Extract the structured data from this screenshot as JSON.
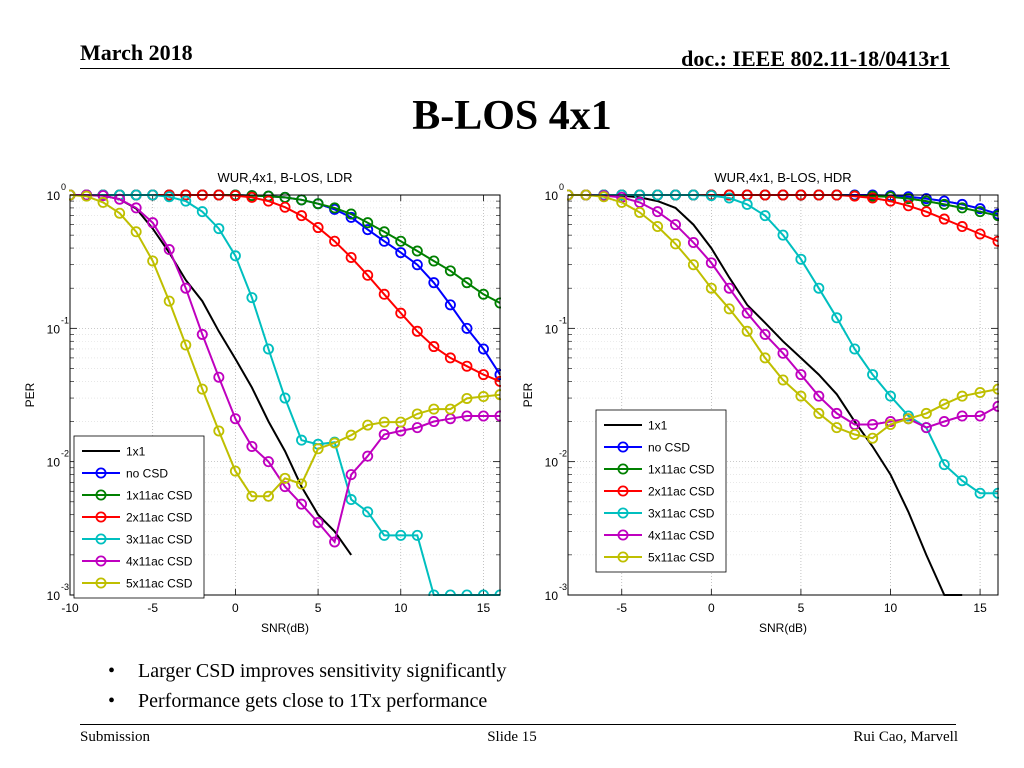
{
  "header": {
    "date": "March 2018",
    "doc": "doc.: IEEE 802.11-18/0413r1"
  },
  "slide_title": "B-LOS 4x1",
  "colors": {
    "1x1": "#000000",
    "no CSD": "#0000ff",
    "1x11ac CSD": "#008000",
    "2x11ac CSD": "#ff0000",
    "3x11ac CSD": "#00bfbf",
    "4x11ac CSD": "#bf00bf",
    "5x11ac CSD": "#bfbf00"
  },
  "chart_data": [
    {
      "type": "line",
      "title": "WUR,4x1, B-LOS, LDR",
      "xlabel": "SNR(dB)",
      "ylabel": "PER",
      "yscale": "log",
      "xlim": [
        -10,
        16
      ],
      "ylim": [
        0.001,
        1
      ],
      "xticks": [
        "-10",
        "-5",
        "0",
        "5",
        "10",
        "15"
      ],
      "xtick_values": [
        -10,
        -5,
        0,
        5,
        10,
        15
      ],
      "yticks": [
        {
          "base": "10",
          "exp": "0",
          "value": 1
        },
        {
          "base": "10",
          "exp": "-1",
          "value": 0.1
        },
        {
          "base": "10",
          "exp": "-2",
          "value": 0.01
        },
        {
          "base": "10",
          "exp": "-3",
          "value": 0.001
        }
      ],
      "legend_position": "bottom-left",
      "series": [
        {
          "name": "1x1",
          "markers": false,
          "x": [
            -10,
            -9,
            -8,
            -7,
            -6,
            -5,
            -4,
            -3,
            -2,
            -1,
            0,
            1,
            2,
            3,
            4,
            5,
            6,
            7
          ],
          "y": [
            1,
            1,
            0.99,
            0.93,
            0.79,
            0.56,
            0.37,
            0.23,
            0.16,
            0.095,
            0.059,
            0.036,
            0.02,
            0.012,
            0.0065,
            0.004,
            0.003,
            0.002
          ]
        },
        {
          "name": "no CSD",
          "markers": true,
          "x": [
            -10,
            -9,
            -8,
            -7,
            -6,
            -5,
            -4,
            -3,
            -2,
            -1,
            0,
            1,
            2,
            3,
            4,
            5,
            6,
            7,
            8,
            9,
            10,
            11,
            12,
            13,
            14,
            15,
            16
          ],
          "y": [
            1,
            1,
            1,
            1,
            1,
            1,
            1,
            1,
            1,
            1,
            1,
            0.99,
            0.98,
            0.96,
            0.92,
            0.86,
            0.78,
            0.68,
            0.55,
            0.45,
            0.37,
            0.3,
            0.22,
            0.15,
            0.1,
            0.07,
            0.045
          ]
        },
        {
          "name": "1x11ac CSD",
          "markers": true,
          "x": [
            -10,
            -9,
            -8,
            -7,
            -6,
            -5,
            -4,
            -3,
            -2,
            -1,
            0,
            1,
            2,
            3,
            4,
            5,
            6,
            7,
            8,
            9,
            10,
            11,
            12,
            13,
            14,
            15,
            16
          ],
          "y": [
            1,
            1,
            1,
            1,
            1,
            1,
            1,
            1,
            1,
            1,
            1,
            0.99,
            0.98,
            0.96,
            0.92,
            0.86,
            0.8,
            0.72,
            0.62,
            0.53,
            0.45,
            0.38,
            0.32,
            0.27,
            0.22,
            0.18,
            0.155
          ]
        },
        {
          "name": "2x11ac CSD",
          "markers": true,
          "x": [
            -10,
            -9,
            -8,
            -7,
            -6,
            -5,
            -4,
            -3,
            -2,
            -1,
            0,
            1,
            2,
            3,
            4,
            5,
            6,
            7,
            8,
            9,
            10,
            11,
            12,
            13,
            14,
            15,
            16
          ],
          "y": [
            1,
            1,
            1,
            1,
            1,
            1,
            1,
            1,
            1,
            1,
            0.99,
            0.96,
            0.9,
            0.81,
            0.7,
            0.57,
            0.45,
            0.34,
            0.25,
            0.18,
            0.13,
            0.095,
            0.073,
            0.06,
            0.052,
            0.045,
            0.04
          ]
        },
        {
          "name": "3x11ac CSD",
          "markers": true,
          "x": [
            -10,
            -9,
            -8,
            -7,
            -6,
            -5,
            -4,
            -3,
            -2,
            -1,
            0,
            1,
            2,
            3,
            4,
            5,
            6,
            7,
            8,
            9,
            10,
            11,
            12,
            13,
            14,
            15,
            16
          ],
          "y": [
            1,
            1,
            1,
            1,
            1,
            1,
            0.97,
            0.9,
            0.75,
            0.56,
            0.35,
            0.17,
            0.07,
            0.03,
            0.0145,
            0.0135,
            0.014,
            0.0052,
            0.0042,
            0.0028,
            0.0028,
            0.0028,
            0.001,
            0.001,
            0.001,
            0.001,
            0.001
          ]
        },
        {
          "name": "4x11ac CSD",
          "markers": true,
          "x": [
            -10,
            -9,
            -8,
            -7,
            -6,
            -5,
            -4,
            -3,
            -2,
            -1,
            0,
            1,
            2,
            3,
            4,
            5,
            6,
            7,
            8,
            9,
            10,
            11,
            12,
            13,
            14,
            15,
            16
          ],
          "y": [
            1,
            1,
            0.99,
            0.93,
            0.8,
            0.62,
            0.39,
            0.2,
            0.09,
            0.043,
            0.021,
            0.013,
            0.01,
            0.0065,
            0.0048,
            0.0035,
            0.0025,
            0.008,
            0.011,
            0.016,
            0.017,
            0.018,
            0.02,
            0.021,
            0.022,
            0.022,
            0.022
          ]
        },
        {
          "name": "5x11ac CSD",
          "markers": true,
          "x": [
            -10,
            -9,
            -8,
            -7,
            -6,
            -5,
            -4,
            -3,
            -2,
            -1,
            0,
            1,
            2,
            3,
            4,
            5,
            6,
            7,
            8,
            9,
            10,
            11,
            12,
            13,
            14,
            15,
            16
          ],
          "y": [
            1,
            0.98,
            0.88,
            0.73,
            0.53,
            0.32,
            0.16,
            0.075,
            0.035,
            0.017,
            0.0085,
            0.0055,
            0.0055,
            0.0075,
            0.0068,
            0.0125,
            0.0138,
            0.0158,
            0.0188,
            0.0198,
            0.0198,
            0.0228,
            0.0248,
            0.0248,
            0.0298,
            0.0308,
            0.0318
          ]
        }
      ]
    },
    {
      "type": "line",
      "title": "WUR,4x1, B-LOS, HDR",
      "xlabel": "SNR(dB)",
      "ylabel": "PER",
      "yscale": "log",
      "xlim": [
        -8,
        16
      ],
      "ylim": [
        0.001,
        1
      ],
      "xticks": [
        "-5",
        "0",
        "5",
        "10",
        "15"
      ],
      "xtick_values": [
        -5,
        0,
        5,
        10,
        15
      ],
      "yticks": [
        {
          "base": "10",
          "exp": "0",
          "value": 1
        },
        {
          "base": "10",
          "exp": "-1",
          "value": 0.1
        },
        {
          "base": "10",
          "exp": "-2",
          "value": 0.01
        },
        {
          "base": "10",
          "exp": "-3",
          "value": 0.001
        }
      ],
      "legend_position": "bottom-right",
      "series": [
        {
          "name": "1x1",
          "markers": false,
          "x": [
            -8,
            -7,
            -6,
            -5,
            -4,
            -3,
            -2,
            -1,
            0,
            1,
            2,
            3,
            4,
            5,
            6,
            7,
            8,
            9,
            10,
            11,
            12,
            13,
            14
          ],
          "y": [
            1,
            1,
            1,
            0.99,
            0.96,
            0.9,
            0.8,
            0.6,
            0.4,
            0.24,
            0.15,
            0.11,
            0.08,
            0.06,
            0.045,
            0.032,
            0.02,
            0.013,
            0.008,
            0.0042,
            0.002,
            0.001,
            0.001
          ]
        },
        {
          "name": "no CSD",
          "markers": true,
          "x": [
            -8,
            -7,
            -6,
            -5,
            -4,
            -3,
            -2,
            -1,
            0,
            1,
            2,
            3,
            4,
            5,
            6,
            7,
            8,
            9,
            10,
            11,
            12,
            13,
            14,
            15,
            16
          ],
          "y": [
            1,
            1,
            1,
            1,
            1,
            1,
            1,
            1,
            1,
            1,
            1,
            1,
            1,
            1,
            1,
            1,
            1,
            1,
            0.99,
            0.97,
            0.94,
            0.9,
            0.85,
            0.79,
            0.72
          ]
        },
        {
          "name": "1x11ac CSD",
          "markers": true,
          "x": [
            -8,
            -7,
            -6,
            -5,
            -4,
            -3,
            -2,
            -1,
            0,
            1,
            2,
            3,
            4,
            5,
            6,
            7,
            8,
            9,
            10,
            11,
            12,
            13,
            14,
            15,
            16
          ],
          "y": [
            1,
            1,
            1,
            1,
            1,
            1,
            1,
            1,
            1,
            1,
            1,
            1,
            1,
            1,
            1,
            1,
            0.99,
            0.98,
            0.97,
            0.94,
            0.9,
            0.85,
            0.8,
            0.75,
            0.7
          ]
        },
        {
          "name": "2x11ac CSD",
          "markers": true,
          "x": [
            -8,
            -7,
            -6,
            -5,
            -4,
            -3,
            -2,
            -1,
            0,
            1,
            2,
            3,
            4,
            5,
            6,
            7,
            8,
            9,
            10,
            11,
            12,
            13,
            14,
            15,
            16
          ],
          "y": [
            1,
            1,
            1,
            1,
            1,
            1,
            1,
            1,
            1,
            1,
            1,
            1,
            1,
            1,
            1,
            1,
            0.98,
            0.95,
            0.9,
            0.83,
            0.75,
            0.66,
            0.58,
            0.51,
            0.45
          ]
        },
        {
          "name": "3x11ac CSD",
          "markers": true,
          "x": [
            -8,
            -7,
            -6,
            -5,
            -4,
            -3,
            -2,
            -1,
            0,
            1,
            2,
            3,
            4,
            5,
            6,
            7,
            8,
            9,
            10,
            11,
            12,
            13,
            14,
            15,
            16
          ],
          "y": [
            1,
            1,
            1,
            1,
            1,
            1,
            1,
            1,
            0.99,
            0.95,
            0.85,
            0.7,
            0.5,
            0.33,
            0.2,
            0.12,
            0.07,
            0.045,
            0.031,
            0.022,
            0.018,
            0.0095,
            0.0072,
            0.0058,
            0.0058
          ]
        },
        {
          "name": "4x11ac CSD",
          "markers": true,
          "x": [
            -8,
            -7,
            -6,
            -5,
            -4,
            -3,
            -2,
            -1,
            0,
            1,
            2,
            3,
            4,
            5,
            6,
            7,
            8,
            9,
            10,
            11,
            12,
            13,
            14,
            15,
            16
          ],
          "y": [
            1,
            1,
            0.99,
            0.96,
            0.88,
            0.75,
            0.6,
            0.44,
            0.31,
            0.2,
            0.13,
            0.09,
            0.065,
            0.045,
            0.031,
            0.023,
            0.019,
            0.019,
            0.02,
            0.021,
            0.018,
            0.02,
            0.022,
            0.022,
            0.026
          ]
        },
        {
          "name": "5x11ac CSD",
          "markers": true,
          "x": [
            -8,
            -7,
            -6,
            -5,
            -4,
            -3,
            -2,
            -1,
            0,
            1,
            2,
            3,
            4,
            5,
            6,
            7,
            8,
            9,
            10,
            11,
            12,
            13,
            14,
            15,
            16
          ],
          "y": [
            1,
            1,
            0.97,
            0.88,
            0.74,
            0.58,
            0.43,
            0.3,
            0.2,
            0.14,
            0.095,
            0.06,
            0.041,
            0.031,
            0.023,
            0.018,
            0.016,
            0.015,
            0.019,
            0.021,
            0.023,
            0.027,
            0.031,
            0.033,
            0.035
          ]
        }
      ]
    }
  ],
  "bullets": [
    {
      "marker": "•",
      "text": "Larger CSD improves sensitivity significantly"
    },
    {
      "marker": "•",
      "text": "Performance gets close to 1Tx performance"
    }
  ],
  "footer": {
    "left": "Submission",
    "center": "Slide 15",
    "right": "Rui Cao, Marvell"
  }
}
